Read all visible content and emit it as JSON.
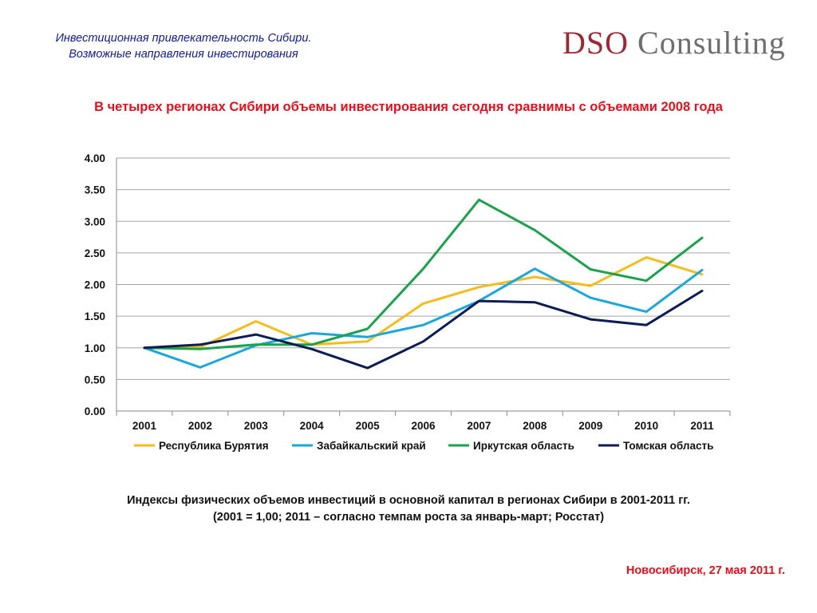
{
  "header": {
    "title_line1": "Инвестиционная привлекательность Сибири.",
    "title_line2": "Возможные направления инвестирования"
  },
  "logo": {
    "part1": "DSO",
    "part2": "Consulting"
  },
  "headline": "В четырех регионах Сибири объемы инвестирования сегодня сравнимы с объемами 2008 года",
  "chart_data": {
    "type": "line",
    "x": [
      "2001",
      "2002",
      "2003",
      "2004",
      "2005",
      "2006",
      "2007",
      "2008",
      "2009",
      "2010",
      "2011"
    ],
    "ylim": [
      0,
      4
    ],
    "yticks": [
      "0.00",
      "0.50",
      "1.00",
      "1.50",
      "2.00",
      "2.50",
      "3.00",
      "3.50",
      "4.00"
    ],
    "grid": true,
    "legend_position": "bottom",
    "series": [
      {
        "name": "Республика Бурятия",
        "color": "#f6bd1a",
        "values": [
          1.0,
          1.01,
          1.42,
          1.05,
          1.1,
          1.7,
          1.96,
          2.12,
          1.98,
          2.43,
          2.16
        ]
      },
      {
        "name": "Забайкальский край",
        "color": "#1aa7dd",
        "values": [
          1.0,
          0.69,
          1.04,
          1.23,
          1.17,
          1.36,
          1.74,
          2.25,
          1.79,
          1.57,
          2.23
        ]
      },
      {
        "name": "Иркутская область",
        "color": "#1aa34a",
        "values": [
          1.0,
          0.98,
          1.05,
          1.05,
          1.3,
          2.25,
          3.34,
          2.86,
          2.24,
          2.06,
          2.74
        ]
      },
      {
        "name": "Томская область",
        "color": "#0c1c55",
        "values": [
          1.0,
          1.05,
          1.21,
          0.98,
          0.68,
          1.1,
          1.74,
          1.72,
          1.45,
          1.36,
          1.9
        ]
      }
    ]
  },
  "caption": {
    "line1": "Индексы физических объемов инвестиций в основной капитал в регионах Сибири в 2001-2011 гг.",
    "line2": "(2001 = 1,00; 2011 – согласно темпам роста за январь-март; Росстат)"
  },
  "footer": {
    "date": "Новосибирск, 27 мая 2011 г."
  }
}
